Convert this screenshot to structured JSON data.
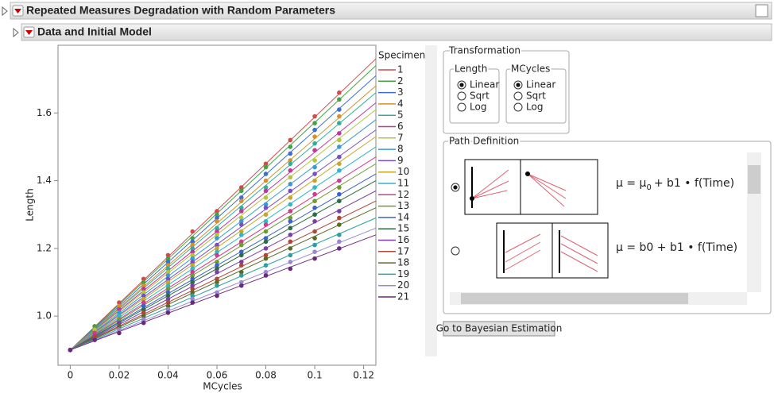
{
  "header": {
    "title": "Repeated Measures Degradation with Random Parameters"
  },
  "outline": {
    "title": "Data and Initial Model"
  },
  "chart_data": {
    "type": "scatter",
    "x_label": "MCycles",
    "y_label": "Length",
    "legend_title": "Specimen",
    "x": [
      0,
      0.01,
      0.02,
      0.03,
      0.04,
      0.05,
      0.06,
      0.07,
      0.08,
      0.09,
      0.1,
      0.11
    ],
    "xlim": [
      -0.005,
      0.125
    ],
    "xticks": [
      0,
      0.02,
      0.04,
      0.06,
      0.08,
      0.1,
      0.12
    ],
    "ylim": [
      0.855,
      1.8
    ],
    "yticks": [
      {
        "value": 1,
        "label": "1.0"
      },
      1.2,
      1.4,
      1.6
    ],
    "fit_x": [
      0,
      0.125
    ],
    "series": [
      {
        "name": "1",
        "color": "#d14b4b",
        "values": [
          0.9,
          0.97,
          1.04,
          1.11,
          1.18,
          1.25,
          1.31,
          1.38,
          1.45,
          1.52,
          1.59,
          1.66
        ],
        "fit_values": [
          0.9,
          1.76
        ]
      },
      {
        "name": "2",
        "color": "#44a341",
        "values": [
          0.9,
          0.97,
          1.03,
          1.1,
          1.17,
          1.23,
          1.3,
          1.37,
          1.44,
          1.5,
          1.57,
          1.64
        ],
        "fit_values": [
          0.9,
          1.74
        ]
      },
      {
        "name": "3",
        "color": "#3b6fd6",
        "values": [
          0.9,
          0.96,
          1.03,
          1.09,
          1.16,
          1.22,
          1.29,
          1.35,
          1.42,
          1.48,
          1.55,
          1.61
        ],
        "fit_values": [
          0.9,
          1.71
        ]
      },
      {
        "name": "4",
        "color": "#d6902d",
        "values": [
          0.9,
          0.96,
          1.03,
          1.09,
          1.15,
          1.21,
          1.28,
          1.34,
          1.4,
          1.46,
          1.53,
          1.59
        ],
        "fit_values": [
          0.9,
          1.68
        ]
      },
      {
        "name": "5",
        "color": "#2db09a",
        "values": [
          0.9,
          0.96,
          1.02,
          1.08,
          1.14,
          1.2,
          1.26,
          1.32,
          1.38,
          1.45,
          1.51,
          1.57
        ],
        "fit_values": [
          0.9,
          1.66
        ]
      },
      {
        "name": "6",
        "color": "#c0379c",
        "values": [
          0.9,
          0.96,
          1.02,
          1.08,
          1.13,
          1.19,
          1.25,
          1.31,
          1.37,
          1.43,
          1.49,
          1.54
        ],
        "fit_values": [
          0.9,
          1.63
        ]
      },
      {
        "name": "7",
        "color": "#b7c43a",
        "values": [
          0.9,
          0.96,
          1.01,
          1.07,
          1.13,
          1.18,
          1.24,
          1.29,
          1.35,
          1.41,
          1.46,
          1.52
        ],
        "fit_values": [
          0.9,
          1.61
        ]
      },
      {
        "name": "8",
        "color": "#3a9ad6",
        "values": [
          0.9,
          0.95,
          1.01,
          1.06,
          1.12,
          1.17,
          1.23,
          1.28,
          1.33,
          1.39,
          1.44,
          1.5
        ],
        "fit_values": [
          0.9,
          1.58
        ]
      },
      {
        "name": "9",
        "color": "#7b4fc4",
        "values": [
          0.9,
          0.95,
          1.0,
          1.06,
          1.11,
          1.16,
          1.21,
          1.27,
          1.32,
          1.37,
          1.42,
          1.47
        ],
        "fit_values": [
          0.9,
          1.55
        ]
      },
      {
        "name": "10",
        "color": "#c9a628",
        "values": [
          0.9,
          0.95,
          1.0,
          1.05,
          1.1,
          1.15,
          1.2,
          1.25,
          1.3,
          1.35,
          1.4,
          1.45
        ],
        "fit_values": [
          0.9,
          1.53
        ]
      },
      {
        "name": "11",
        "color": "#30b7c9",
        "values": [
          0.9,
          0.95,
          1.0,
          1.04,
          1.09,
          1.14,
          1.19,
          1.24,
          1.28,
          1.33,
          1.38,
          1.43
        ],
        "fit_values": [
          0.9,
          1.5
        ]
      },
      {
        "name": "12",
        "color": "#d23a8d",
        "values": [
          0.9,
          0.95,
          0.99,
          1.04,
          1.08,
          1.13,
          1.18,
          1.22,
          1.27,
          1.31,
          1.36,
          1.4
        ],
        "fit_values": [
          0.9,
          1.47
        ]
      },
      {
        "name": "13",
        "color": "#6f9a2d",
        "values": [
          0.9,
          0.94,
          0.99,
          1.03,
          1.08,
          1.12,
          1.16,
          1.21,
          1.25,
          1.29,
          1.34,
          1.38
        ],
        "fit_values": [
          0.9,
          1.45
        ]
      },
      {
        "name": "14",
        "color": "#3c63c6",
        "values": [
          0.9,
          0.94,
          0.98,
          1.03,
          1.07,
          1.11,
          1.15,
          1.19,
          1.23,
          1.28,
          1.32,
          1.36
        ],
        "fit_values": [
          0.9,
          1.42
        ]
      },
      {
        "name": "15",
        "color": "#2a6d44",
        "values": [
          0.9,
          0.94,
          0.98,
          1.02,
          1.06,
          1.1,
          1.14,
          1.18,
          1.22,
          1.26,
          1.3,
          1.34
        ],
        "fit_values": [
          0.9,
          1.4
        ]
      },
      {
        "name": "16",
        "color": "#7a3fa8",
        "values": [
          0.9,
          0.94,
          0.98,
          1.01,
          1.05,
          1.09,
          1.13,
          1.16,
          1.2,
          1.24,
          1.28,
          1.31
        ],
        "fit_values": [
          0.9,
          1.37
        ]
      },
      {
        "name": "17",
        "color": "#b0463a",
        "values": [
          0.9,
          0.94,
          0.97,
          1.01,
          1.04,
          1.08,
          1.11,
          1.15,
          1.18,
          1.22,
          1.25,
          1.29
        ],
        "fit_values": [
          0.9,
          1.34
        ]
      },
      {
        "name": "18",
        "color": "#5c6b24",
        "values": [
          0.9,
          0.93,
          0.97,
          1.0,
          1.03,
          1.07,
          1.1,
          1.13,
          1.17,
          1.2,
          1.23,
          1.27
        ],
        "fit_values": [
          0.9,
          1.32
        ]
      },
      {
        "name": "19",
        "color": "#2aa0a0",
        "values": [
          0.9,
          0.93,
          0.96,
          0.99,
          1.02,
          1.06,
          1.09,
          1.12,
          1.15,
          1.18,
          1.21,
          1.24
        ],
        "fit_values": [
          0.9,
          1.29
        ]
      },
      {
        "name": "20",
        "color": "#9b86d4",
        "values": [
          0.9,
          0.93,
          0.96,
          0.99,
          1.02,
          1.05,
          1.07,
          1.1,
          1.13,
          1.16,
          1.19,
          1.22
        ],
        "fit_values": [
          0.9,
          1.26
        ]
      },
      {
        "name": "21",
        "color": "#6a2a7a",
        "values": [
          0.9,
          0.93,
          0.95,
          0.98,
          1.01,
          1.04,
          1.06,
          1.09,
          1.12,
          1.14,
          1.17,
          1.2
        ],
        "fit_values": [
          0.9,
          1.24
        ]
      }
    ]
  },
  "transformation": {
    "title": "Transformation",
    "groups": [
      {
        "title": "Length",
        "options": [
          "Linear",
          "Sqrt",
          "Log"
        ],
        "selected": 0
      },
      {
        "title": "MCycles",
        "options": [
          "Linear",
          "Sqrt",
          "Log"
        ],
        "selected": 0
      }
    ]
  },
  "path_definition": {
    "title": "Path Definition",
    "selected": 0,
    "options": [
      {
        "formula": "μ = μ",
        "subscript": "0",
        "rest": "+ b1 • f(Time)"
      },
      {
        "formula": "μ = b0 + b1 • f(Time)"
      }
    ]
  },
  "button": "Go to Bayesian Estimation"
}
